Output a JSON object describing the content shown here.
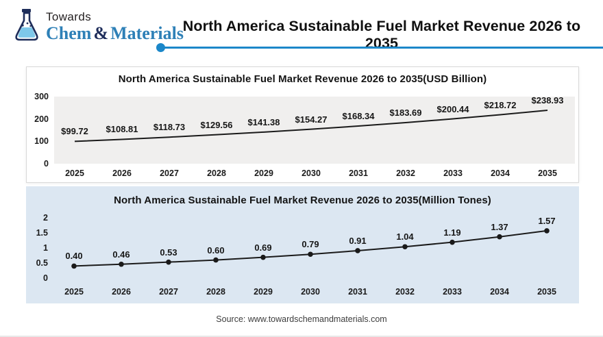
{
  "header": {
    "logo": {
      "towards": "Towards",
      "chem": "Chem",
      "amp": "&",
      "materials": "Materials"
    },
    "title": "North America Sustainable Fuel Market Revenue 2026 to 2035"
  },
  "footer": {
    "source": "Source: www.towardschemandmaterials.com"
  },
  "colors": {
    "accent_blue": "#1b87c9",
    "brand_navy": "#1e2d5a",
    "brand_blue": "#2e80b7",
    "chart1_plot_bg": "#f0efee",
    "chart2_bg": "#dce7f2",
    "series_line": "#1a1a1a"
  },
  "chart_data": [
    {
      "type": "line",
      "title": "North America Sustainable Fuel Market Revenue 2026 to 2035(USD Billion)",
      "categories": [
        "2025",
        "2026",
        "2027",
        "2028",
        "2029",
        "2030",
        "2031",
        "2032",
        "2033",
        "2034",
        "2035"
      ],
      "values": [
        99.72,
        108.81,
        118.73,
        129.56,
        141.38,
        154.27,
        168.34,
        183.69,
        200.44,
        218.72,
        238.93
      ],
      "labels": [
        "$99.72",
        "$108.81",
        "$118.73",
        "$129.56",
        "$141.38",
        "$154.27",
        "$168.34",
        "$183.69",
        "$200.44",
        "$218.72",
        "$238.93"
      ],
      "xlabel": "",
      "ylabel": "",
      "ylim": [
        0,
        300
      ],
      "yticks": [
        0,
        100,
        200,
        300
      ],
      "grid": false,
      "legend": false,
      "markers": false,
      "line_color": "#1a1a1a"
    },
    {
      "type": "line",
      "title": "North America Sustainable Fuel Market Revenue 2026 to 2035(Million Tones)",
      "categories": [
        "2025",
        "2026",
        "2027",
        "2028",
        "2029",
        "2030",
        "2031",
        "2032",
        "2033",
        "2034",
        "2035"
      ],
      "values": [
        0.4,
        0.46,
        0.53,
        0.6,
        0.69,
        0.79,
        0.91,
        1.04,
        1.19,
        1.37,
        1.57
      ],
      "labels": [
        "0.40",
        "0.46",
        "0.53",
        "0.60",
        "0.69",
        "0.79",
        "0.91",
        "1.04",
        "1.19",
        "1.37",
        "1.57"
      ],
      "xlabel": "",
      "ylabel": "",
      "ylim": [
        0,
        2
      ],
      "yticks": [
        0,
        0.5,
        1,
        1.5,
        2
      ],
      "grid": false,
      "legend": false,
      "markers": true,
      "line_color": "#1a1a1a"
    }
  ]
}
